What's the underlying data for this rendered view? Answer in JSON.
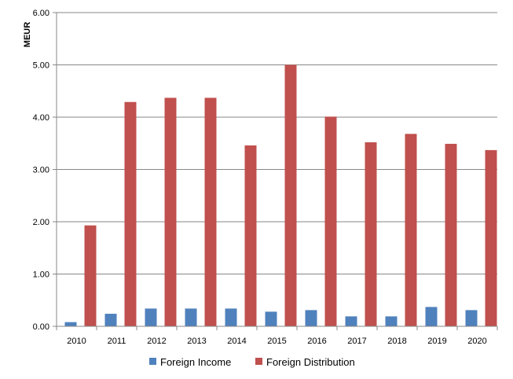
{
  "chart_data": {
    "type": "bar",
    "ylabel": "MEUR",
    "xlabel": "",
    "title": "",
    "ylim": [
      0,
      6
    ],
    "yticks": [
      "0.00",
      "1.00",
      "2.00",
      "3.00",
      "4.00",
      "5.00",
      "6.00"
    ],
    "grid": true,
    "legend_position": "bottom",
    "categories": [
      "2010",
      "2011",
      "2012",
      "2013",
      "2014",
      "2015",
      "2016",
      "2017",
      "2018",
      "2019",
      "2020"
    ],
    "series": [
      {
        "name": "Foreign Income",
        "color": "#4f81bd",
        "values": [
          0.08,
          0.24,
          0.34,
          0.34,
          0.34,
          0.28,
          0.31,
          0.19,
          0.19,
          0.37,
          0.31
        ]
      },
      {
        "name": "Foreign Distribution",
        "color": "#c0504d",
        "values": [
          1.93,
          4.29,
          4.37,
          4.37,
          3.46,
          5.0,
          4.01,
          3.52,
          3.68,
          3.49,
          3.37
        ]
      }
    ]
  }
}
